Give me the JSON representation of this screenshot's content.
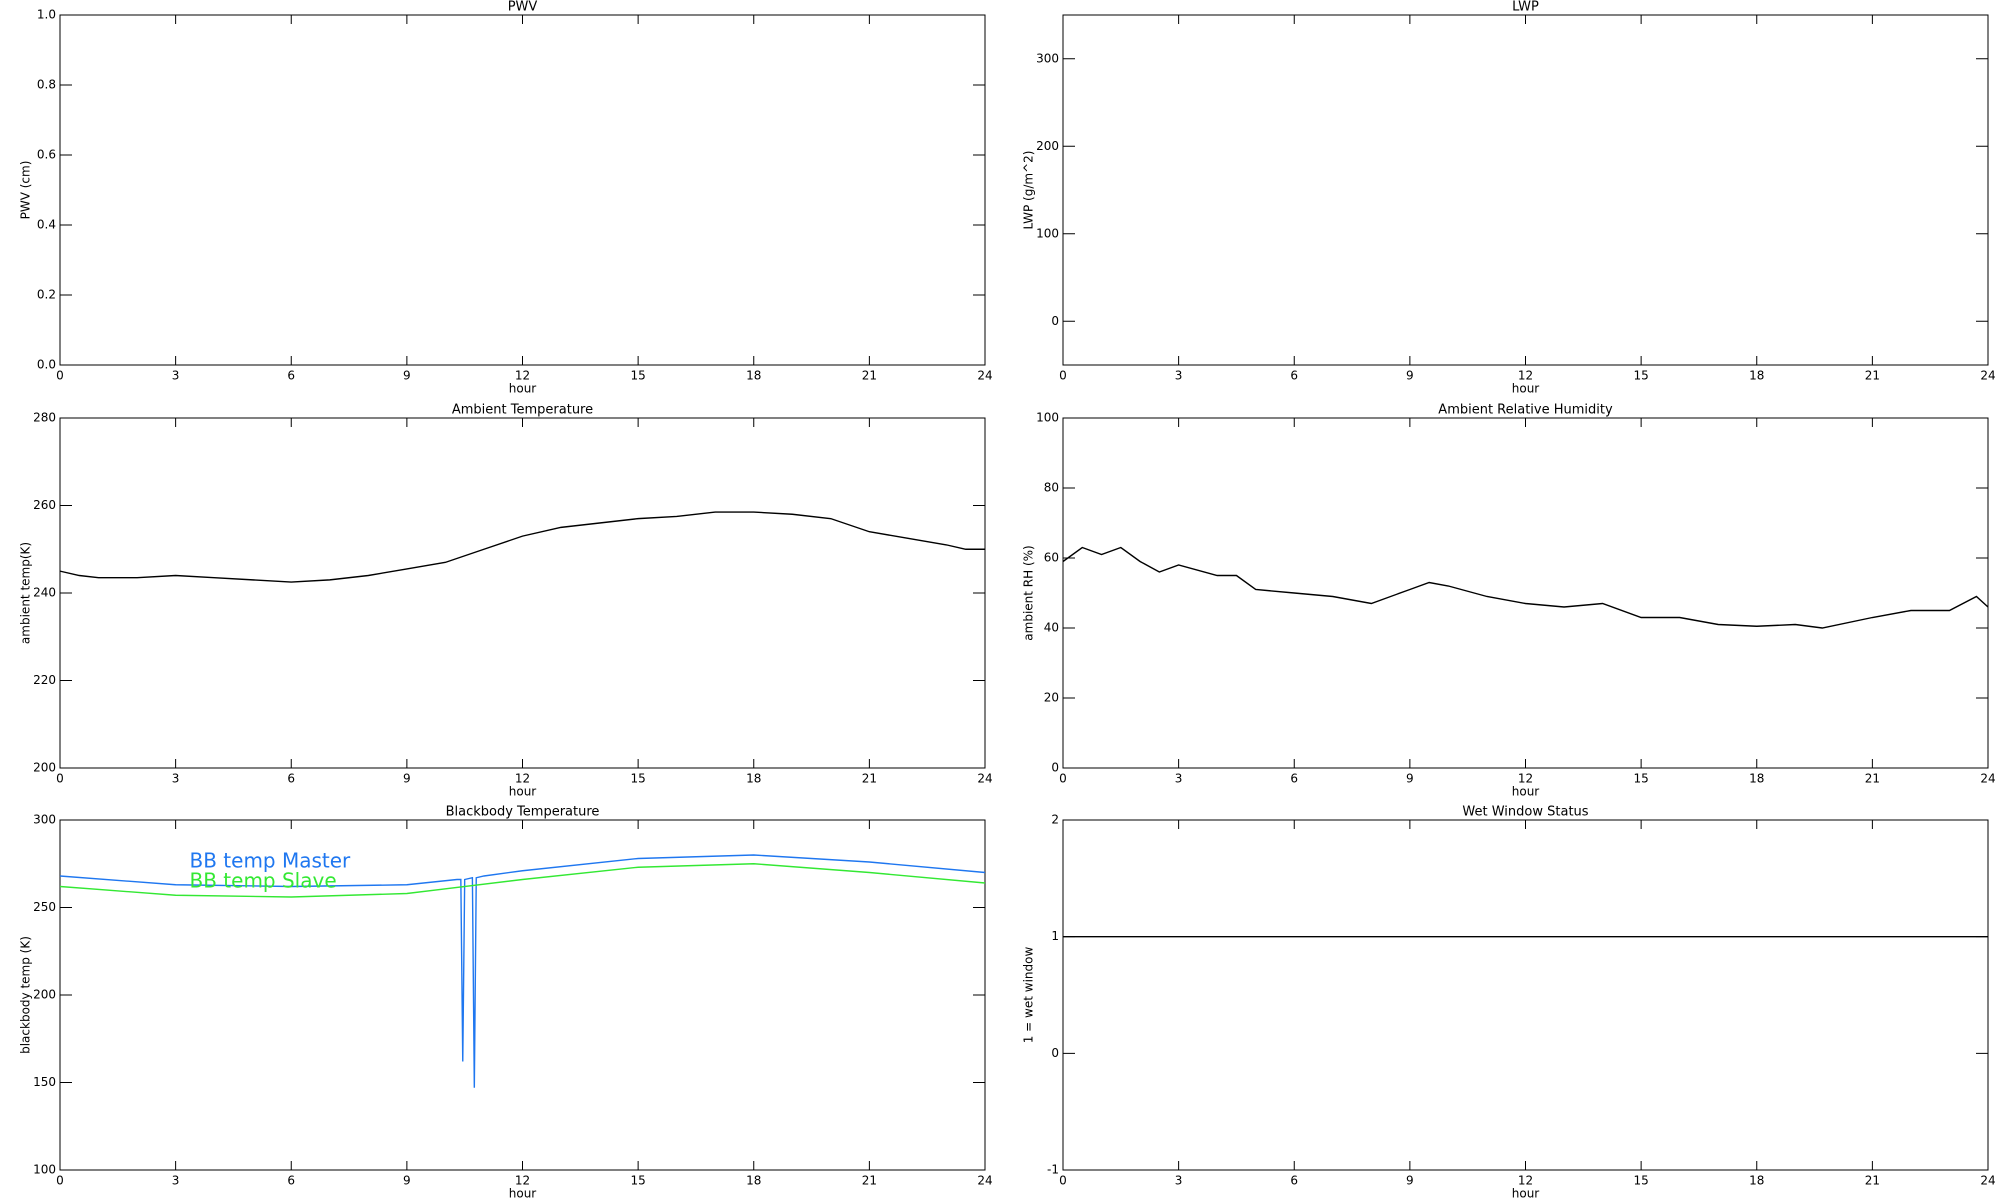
{
  "chart_data": [
    {
      "type": "line",
      "title": "PWV",
      "ylabel": "PWV (cm)",
      "xlabel": "hour",
      "xlim": [
        0,
        24
      ],
      "xticks": [
        0,
        3,
        6,
        9,
        12,
        15,
        18,
        21,
        24
      ],
      "ylim": [
        0,
        1
      ],
      "yticks": [
        {
          "value": 0,
          "label": "0.0"
        },
        {
          "value": 0.2,
          "label": "0.2"
        },
        {
          "value": 0.4,
          "label": "0.4"
        },
        {
          "value": 0.6,
          "label": "0.6"
        },
        {
          "value": 0.8,
          "label": "0.8"
        },
        {
          "value": 1,
          "label": "1.0"
        }
      ],
      "series": []
    },
    {
      "type": "line",
      "title": "LWP",
      "ylabel": "LWP (g/m^2)",
      "xlabel": "hour",
      "xlim": [
        0,
        24
      ],
      "xticks": [
        0,
        3,
        6,
        9,
        12,
        15,
        18,
        21,
        24
      ],
      "ylim": [
        -50,
        350
      ],
      "yticks": [
        0,
        100,
        200,
        300
      ],
      "series": []
    },
    {
      "type": "line",
      "title": "Ambient Temperature",
      "ylabel": "ambient temp(K)",
      "xlabel": "hour",
      "xlim": [
        0,
        24
      ],
      "xticks": [
        0,
        3,
        6,
        9,
        12,
        15,
        18,
        21,
        24
      ],
      "ylim": [
        200,
        280
      ],
      "yticks": [
        200,
        220,
        240,
        260,
        280
      ],
      "series": [
        {
          "color": "#000000",
          "x": [
            0,
            0.5,
            1,
            2,
            3,
            4,
            5,
            6,
            7,
            8,
            9,
            10,
            11,
            12,
            13,
            14,
            15,
            16,
            17,
            18,
            19,
            20,
            21,
            22,
            23,
            23.5,
            24
          ],
          "values": [
            245,
            244,
            243.5,
            243.5,
            244,
            243.5,
            243,
            242.5,
            243,
            244,
            245.5,
            247,
            250,
            253,
            255,
            256,
            257,
            257.5,
            258.5,
            258.5,
            258,
            257,
            254,
            252.5,
            251,
            250,
            250
          ]
        }
      ]
    },
    {
      "type": "line",
      "title": "Ambient Relative Humidity",
      "ylabel": "ambient RH (%)",
      "xlabel": "hour",
      "xlim": [
        0,
        24
      ],
      "xticks": [
        0,
        3,
        6,
        9,
        12,
        15,
        18,
        21,
        24
      ],
      "ylim": [
        0,
        100
      ],
      "yticks": [
        0,
        20,
        40,
        60,
        80,
        100
      ],
      "series": [
        {
          "color": "#000000",
          "x": [
            0,
            0.5,
            1,
            1.5,
            2,
            2.5,
            3,
            4,
            4.5,
            5,
            6,
            7,
            8,
            9,
            9.5,
            10,
            11,
            12,
            13,
            14,
            15,
            16,
            17,
            18,
            19,
            19.7,
            21,
            22,
            23,
            23.7,
            24
          ],
          "values": [
            59,
            63,
            61,
            63,
            59,
            56,
            58,
            55,
            55,
            51,
            50,
            49,
            47,
            51,
            53,
            52,
            49,
            47,
            46,
            47,
            43,
            43,
            41,
            40.5,
            41,
            40,
            43,
            45,
            45,
            49,
            46
          ]
        }
      ]
    },
    {
      "type": "line",
      "title": "Blackbody Temperature",
      "ylabel": "blackbody temp (K)",
      "xlabel": "hour",
      "xlim": [
        0,
        24
      ],
      "xticks": [
        0,
        3,
        6,
        9,
        12,
        15,
        18,
        21,
        24
      ],
      "ylim": [
        100,
        300
      ],
      "yticks": [
        100,
        150,
        200,
        250,
        300
      ],
      "legend": "upper left",
      "series": [
        {
          "name": "BB temp Master",
          "color": "#1f77f0",
          "x": [
            0,
            3,
            6,
            9,
            10.3,
            10.4,
            10.45,
            10.5,
            10.7,
            10.75,
            10.8,
            11,
            12,
            15,
            18,
            21,
            24
          ],
          "values": [
            268,
            263,
            262,
            263,
            266,
            266,
            162,
            266,
            267,
            147,
            267,
            268,
            271,
            278,
            280,
            276,
            270
          ]
        },
        {
          "name": "BB temp Slave",
          "color": "#33e833",
          "x": [
            0,
            3,
            6,
            9,
            12,
            15,
            18,
            21,
            24
          ],
          "values": [
            262,
            257,
            256,
            258,
            266,
            273,
            275,
            270,
            264
          ]
        }
      ]
    },
    {
      "type": "line",
      "title": "Wet Window Status",
      "ylabel": "1 = wet window",
      "xlabel": "hour",
      "xlim": [
        0,
        24
      ],
      "xticks": [
        0,
        3,
        6,
        9,
        12,
        15,
        18,
        21,
        24
      ],
      "ylim": [
        -1,
        2
      ],
      "yticks": [
        -1,
        0,
        1,
        2
      ],
      "series": [
        {
          "color": "#000000",
          "x": [
            0,
            24
          ],
          "values": [
            1,
            1
          ]
        }
      ]
    }
  ]
}
